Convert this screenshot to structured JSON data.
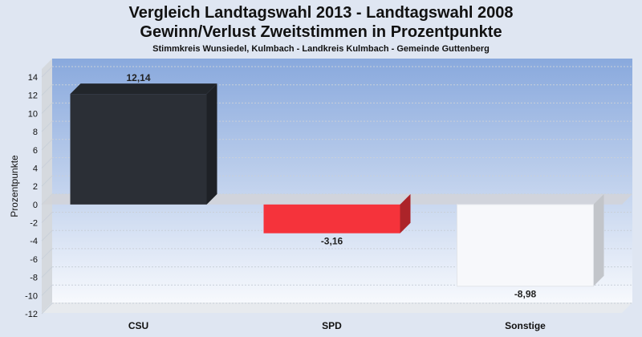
{
  "chart_data": {
    "type": "bar",
    "title": "Vergleich Landtagswahl 2013 - Landtagswahl 2008",
    "subtitle": "Gewinn/Verlust Zweitstimmen in Prozentpunkte",
    "caption": "Stimmkreis Wunsiedel, Kulmbach - Landkreis Kulmbach - Gemeinde Guttenberg",
    "ylabel": "Prozentpunkte",
    "xlabel": "",
    "categories": [
      "CSU",
      "SPD",
      "Sonstige"
    ],
    "values": [
      12.14,
      -3.16,
      -8.98
    ],
    "value_labels": [
      "12,14",
      "-3,16",
      "-8,98"
    ],
    "colors": [
      "#2b2f36",
      "#f5333b",
      "#f7f8fb"
    ],
    "ylim": [
      -12,
      14
    ],
    "yticks": [
      14,
      12,
      10,
      8,
      6,
      4,
      2,
      0,
      -2,
      -4,
      -6,
      -8,
      -10,
      -12
    ],
    "grid": true,
    "legend": "none"
  }
}
